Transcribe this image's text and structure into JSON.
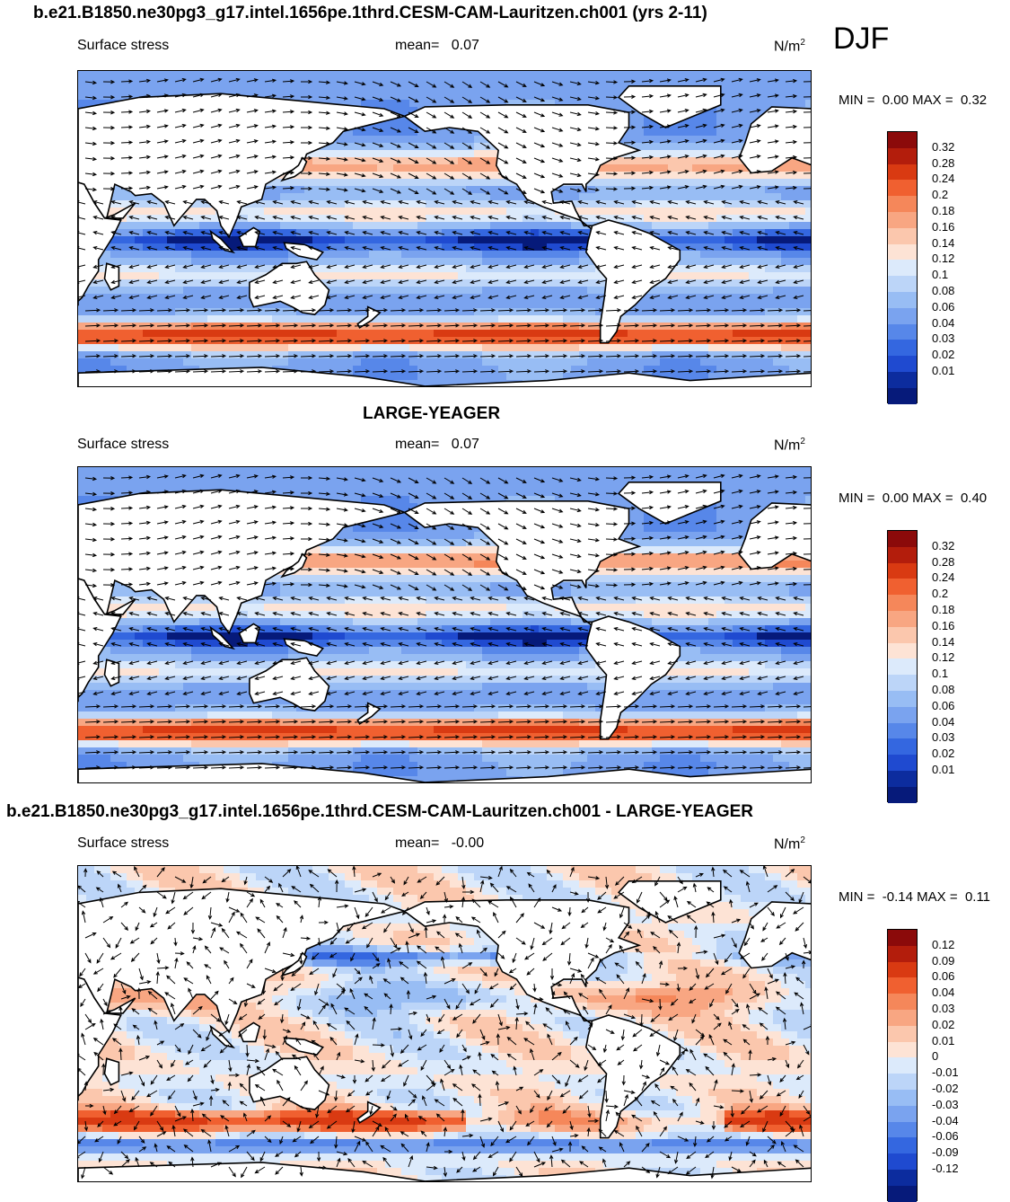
{
  "panels": [
    {
      "title": "b.e21.B1850.ne30pg3_g17.intel.1656pe.1thrd.CESM-CAM-Lauritzen.ch001 (yrs 2-11)",
      "field": "Surface stress",
      "mean_label": "mean=",
      "mean_value": "0.07",
      "units": "N/m",
      "units_exp": "2",
      "min_label": "MIN =",
      "min_value": "0.00",
      "max_label": "MAX =",
      "max_value": "0.32",
      "colorbar": {
        "labels": [
          "0.32",
          "0.28",
          "0.24",
          "0.2",
          "0.18",
          "0.16",
          "0.14",
          "0.12",
          "0.1",
          "0.08",
          "0.06",
          "0.04",
          "0.03",
          "0.02",
          "0.01"
        ],
        "colors": [
          "#8b0a0a",
          "#b31d0c",
          "#d93a12",
          "#f06030",
          "#f5875a",
          "#f8a682",
          "#fbc7ad",
          "#fde3d5",
          "#dceafb",
          "#bcd5f8",
          "#98bdf4",
          "#7aa3ef",
          "#5787e9",
          "#3467e0",
          "#1f4ad0",
          "#0c2c9e",
          "#061a7a"
        ]
      }
    },
    {
      "title": "LARGE-YEAGER",
      "field": "Surface stress",
      "mean_label": "mean=",
      "mean_value": "0.07",
      "units": "N/m",
      "units_exp": "2",
      "min_label": "MIN =",
      "min_value": "0.00",
      "max_label": "MAX =",
      "max_value": "0.40",
      "colorbar": {
        "labels": [
          "0.32",
          "0.28",
          "0.24",
          "0.2",
          "0.18",
          "0.16",
          "0.14",
          "0.12",
          "0.1",
          "0.08",
          "0.06",
          "0.04",
          "0.03",
          "0.02",
          "0.01"
        ],
        "colors": [
          "#8b0a0a",
          "#b31d0c",
          "#d93a12",
          "#f06030",
          "#f5875a",
          "#f8a682",
          "#fbc7ad",
          "#fde3d5",
          "#dceafb",
          "#bcd5f8",
          "#98bdf4",
          "#7aa3ef",
          "#5787e9",
          "#3467e0",
          "#1f4ad0",
          "#0c2c9e",
          "#061a7a"
        ]
      }
    },
    {
      "title": "b.e21.B1850.ne30pg3_g17.intel.1656pe.1thrd.CESM-CAM-Lauritzen.ch001 - LARGE-YEAGER",
      "field": "Surface stress",
      "mean_label": "mean=",
      "mean_value": "-0.00",
      "units": "N/m",
      "units_exp": "2",
      "min_label": "MIN =",
      "min_value": "-0.14",
      "max_label": "MAX =",
      "max_value": "0.11",
      "colorbar": {
        "labels": [
          "0.12",
          "0.09",
          "0.06",
          "0.04",
          "0.03",
          "0.02",
          "0.01",
          "0",
          "-0.01",
          "-0.02",
          "-0.03",
          "-0.04",
          "-0.06",
          "-0.09",
          "-0.12"
        ],
        "colors": [
          "#8b0a0a",
          "#b31d0c",
          "#d93a12",
          "#f06030",
          "#f5875a",
          "#f8a682",
          "#fbc7ad",
          "#fde3d5",
          "#dceafb",
          "#bcd5f8",
          "#98bdf4",
          "#7aa3ef",
          "#5787e9",
          "#3467e0",
          "#1f4ad0",
          "#0c2c9e",
          "#061a7a"
        ]
      }
    }
  ],
  "season": "DJF"
}
